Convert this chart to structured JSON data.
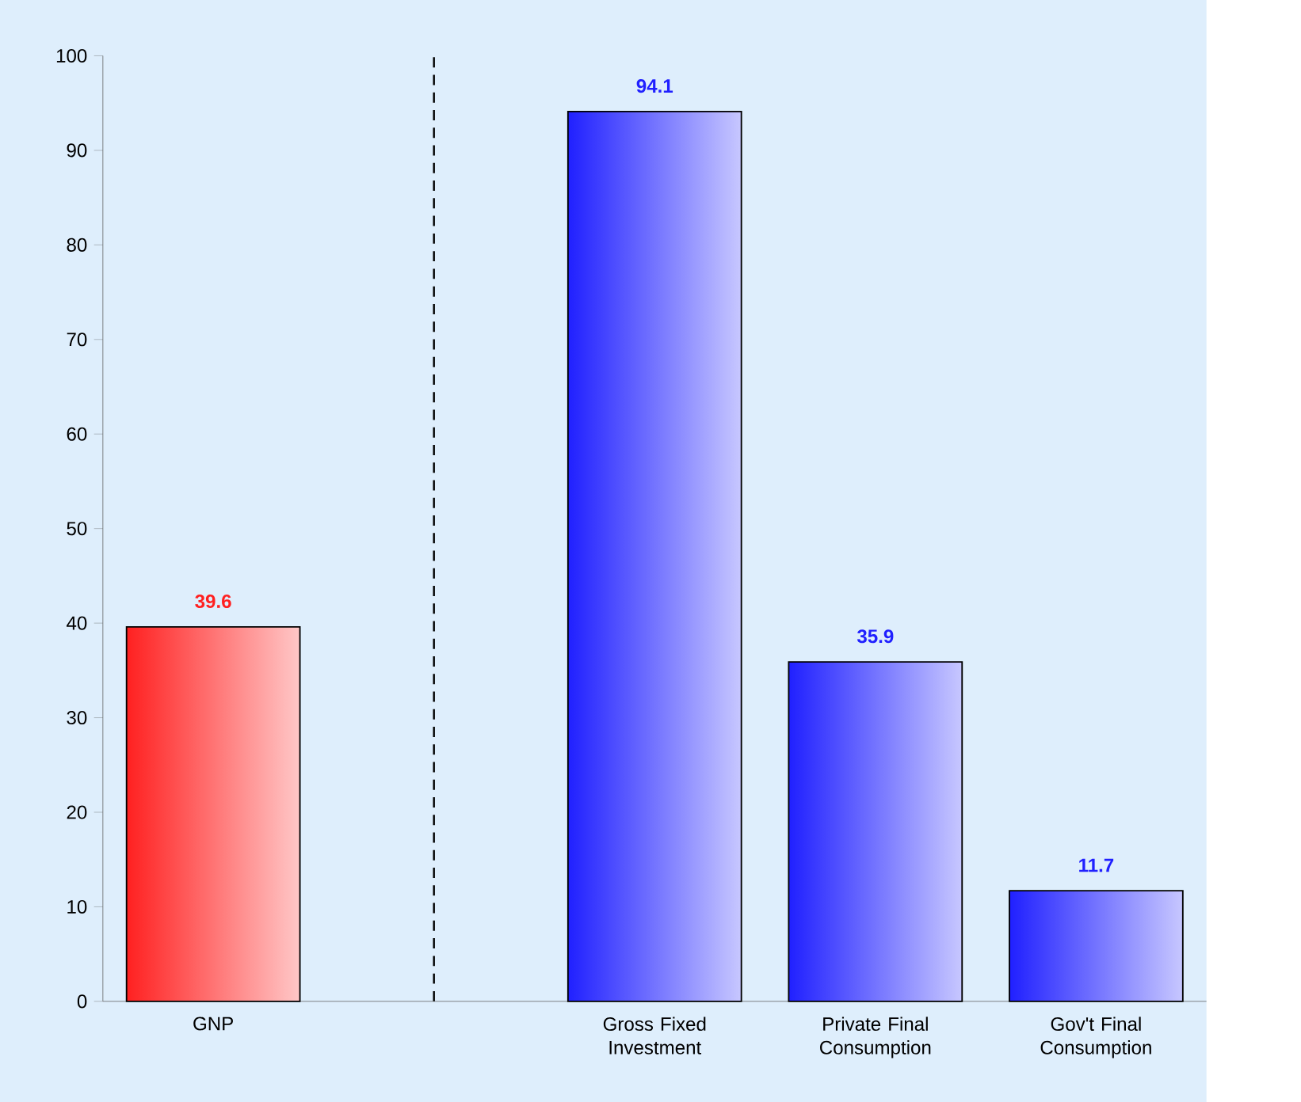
{
  "chart_data": {
    "type": "bar",
    "categories": [
      "GNP",
      null,
      "Gross Fixed Investment",
      "Private Final Consumption",
      "Gov't Final Consumption"
    ],
    "values": [
      39.6,
      null,
      94.1,
      35.9,
      11.7
    ],
    "colors": [
      "#ff2020",
      "#2020ff",
      "#2020ff",
      "#2020ff",
      "#2020ff"
    ],
    "ylim": [
      0,
      100
    ],
    "yticks": [
      0,
      10,
      20,
      30,
      40,
      50,
      60,
      70,
      80,
      90,
      100
    ],
    "data_labels": true
  }
}
